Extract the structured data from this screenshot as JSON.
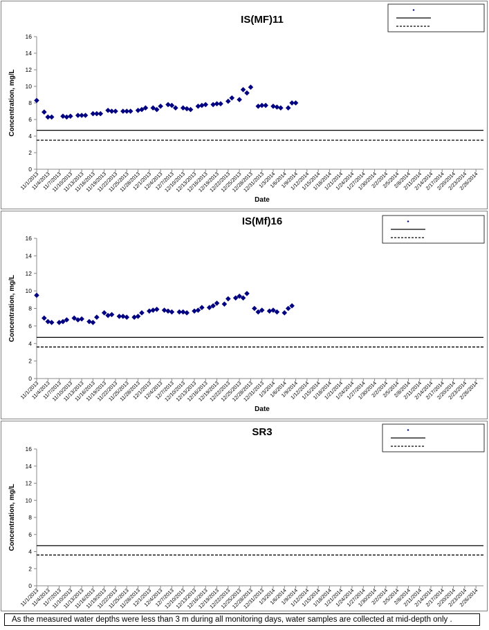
{
  "x_dates": [
    "11/1/2013",
    "11/4/2013",
    "11/7/2013",
    "11/10/2013",
    "11/13/2013",
    "11/16/2013",
    "11/19/2013",
    "11/22/2013",
    "11/25/2013",
    "11/28/2013",
    "12/1/2013",
    "12/4/2013",
    "12/7/2013",
    "12/10/2013",
    "12/13/2013",
    "12/16/2013",
    "12/19/2013",
    "12/22/2013",
    "12/25/2013",
    "12/28/2013",
    "12/31/2013",
    "1/3/2014",
    "1/6/2014",
    "1/9/2014",
    "1/12/2014",
    "1/15/2014",
    "1/18/2014",
    "1/21/2014",
    "1/24/2014",
    "1/27/2014",
    "1/30/2014",
    "2/2/2014",
    "2/5/2014",
    "2/8/2014",
    "2/11/2014",
    "2/14/2014",
    "2/17/2014",
    "2/20/2014",
    "2/23/2014",
    "2/26/2014"
  ],
  "footnote": "As the measured water depths were less than 3 m during all monitoring days, water samples are collected  at mid-depth only .",
  "chart_data": [
    {
      "type": "scatter",
      "title": "IS(MF)11",
      "xlabel": "Date",
      "ylabel": "Concentration, mg/L",
      "ylim": [
        0,
        16
      ],
      "y_ticks": [
        0,
        2,
        4,
        6,
        8,
        10,
        12,
        14,
        16
      ],
      "x_range": [
        "11/1/2013",
        "2/28/2014"
      ],
      "grid": false,
      "legend_position": "top-right",
      "marker_color": "#000080",
      "points": [
        [
          "11/1/2013",
          8.3
        ],
        [
          "11/3/2013",
          6.9
        ],
        [
          "11/4/2013",
          6.3
        ],
        [
          "11/5/2013",
          6.3
        ],
        [
          "11/8/2013",
          6.4
        ],
        [
          "11/9/2013",
          6.3
        ],
        [
          "11/10/2013",
          6.4
        ],
        [
          "11/12/2013",
          6.5
        ],
        [
          "11/13/2013",
          6.5
        ],
        [
          "11/14/2013",
          6.5
        ],
        [
          "11/16/2013",
          6.7
        ],
        [
          "11/17/2013",
          6.7
        ],
        [
          "11/18/2013",
          6.7
        ],
        [
          "11/20/2013",
          7.1
        ],
        [
          "11/21/2013",
          7.0
        ],
        [
          "11/22/2013",
          7.0
        ],
        [
          "11/24/2013",
          7.0
        ],
        [
          "11/25/2013",
          7.0
        ],
        [
          "11/26/2013",
          7.0
        ],
        [
          "11/28/2013",
          7.1
        ],
        [
          "11/29/2013",
          7.2
        ],
        [
          "11/30/2013",
          7.4
        ],
        [
          "12/2/2013",
          7.4
        ],
        [
          "12/3/2013",
          7.2
        ],
        [
          "12/4/2013",
          7.6
        ],
        [
          "12/6/2013",
          7.8
        ],
        [
          "12/7/2013",
          7.7
        ],
        [
          "12/8/2013",
          7.4
        ],
        [
          "12/10/2013",
          7.4
        ],
        [
          "12/11/2013",
          7.3
        ],
        [
          "12/12/2013",
          7.2
        ],
        [
          "12/14/2013",
          7.6
        ],
        [
          "12/15/2013",
          7.7
        ],
        [
          "12/16/2013",
          7.8
        ],
        [
          "12/18/2013",
          7.8
        ],
        [
          "12/19/2013",
          7.9
        ],
        [
          "12/20/2013",
          7.9
        ],
        [
          "12/22/2013",
          8.2
        ],
        [
          "12/23/2013",
          8.6
        ],
        [
          "12/25/2013",
          8.4
        ],
        [
          "12/26/2013",
          9.6
        ],
        [
          "12/27/2013",
          9.2
        ],
        [
          "12/28/2013",
          9.9
        ],
        [
          "12/30/2013",
          7.6
        ],
        [
          "12/31/2013",
          7.7
        ],
        [
          "1/1/2014",
          7.7
        ],
        [
          "1/3/2014",
          7.6
        ],
        [
          "1/4/2014",
          7.5
        ],
        [
          "1/5/2014",
          7.4
        ],
        [
          "1/7/2014",
          7.4
        ],
        [
          "1/8/2014",
          8.0
        ],
        [
          "1/9/2014",
          8.0
        ]
      ],
      "reference_lines": [
        {
          "name": "",
          "value": 4.7,
          "style": "solid"
        },
        {
          "name": "",
          "value": 3.5,
          "style": "dashed"
        }
      ]
    },
    {
      "type": "scatter",
      "title": "IS(Mf)16",
      "xlabel": "Date",
      "ylabel": "Concentration, mg/L",
      "ylim": [
        0,
        16
      ],
      "y_ticks": [
        0,
        2,
        4,
        6,
        8,
        10,
        12,
        14,
        16
      ],
      "x_range": [
        "11/1/2013",
        "2/28/2014"
      ],
      "grid": false,
      "legend_position": "top-right",
      "marker_color": "#000080",
      "points": [
        [
          "11/1/2013",
          9.5
        ],
        [
          "11/3/2013",
          6.9
        ],
        [
          "11/4/2013",
          6.5
        ],
        [
          "11/5/2013",
          6.4
        ],
        [
          "11/7/2013",
          6.4
        ],
        [
          "11/8/2013",
          6.5
        ],
        [
          "11/9/2013",
          6.7
        ],
        [
          "11/11/2013",
          6.9
        ],
        [
          "11/12/2013",
          6.7
        ],
        [
          "11/13/2013",
          6.8
        ],
        [
          "11/15/2013",
          6.5
        ],
        [
          "11/16/2013",
          6.4
        ],
        [
          "11/17/2013",
          7.0
        ],
        [
          "11/19/2013",
          7.5
        ],
        [
          "11/20/2013",
          7.2
        ],
        [
          "11/21/2013",
          7.3
        ],
        [
          "11/23/2013",
          7.1
        ],
        [
          "11/24/2013",
          7.1
        ],
        [
          "11/25/2013",
          7.0
        ],
        [
          "11/27/2013",
          7.0
        ],
        [
          "11/28/2013",
          7.1
        ],
        [
          "11/29/2013",
          7.5
        ],
        [
          "12/1/2013",
          7.7
        ],
        [
          "12/2/2013",
          7.8
        ],
        [
          "12/3/2013",
          7.9
        ],
        [
          "12/5/2013",
          7.8
        ],
        [
          "12/6/2013",
          7.7
        ],
        [
          "12/7/2013",
          7.6
        ],
        [
          "12/9/2013",
          7.6
        ],
        [
          "12/10/2013",
          7.6
        ],
        [
          "12/11/2013",
          7.5
        ],
        [
          "12/13/2013",
          7.7
        ],
        [
          "12/14/2013",
          7.8
        ],
        [
          "12/15/2013",
          8.1
        ],
        [
          "12/17/2013",
          8.1
        ],
        [
          "12/18/2013",
          8.3
        ],
        [
          "12/19/2013",
          8.6
        ],
        [
          "12/21/2013",
          8.5
        ],
        [
          "12/22/2013",
          9.1
        ],
        [
          "12/24/2013",
          9.2
        ],
        [
          "12/25/2013",
          9.4
        ],
        [
          "12/26/2013",
          9.2
        ],
        [
          "12/27/2013",
          9.7
        ],
        [
          "12/29/2013",
          8.0
        ],
        [
          "12/30/2013",
          7.6
        ],
        [
          "12/31/2013",
          7.8
        ],
        [
          "1/2/2014",
          7.7
        ],
        [
          "1/3/2014",
          7.8
        ],
        [
          "1/4/2014",
          7.6
        ],
        [
          "1/6/2014",
          7.5
        ],
        [
          "1/7/2014",
          8.0
        ],
        [
          "1/8/2014",
          8.3
        ]
      ],
      "reference_lines": [
        {
          "name": "",
          "value": 4.7,
          "style": "solid"
        },
        {
          "name": "",
          "value": 3.6,
          "style": "dashed"
        }
      ]
    },
    {
      "type": "scatter",
      "title": "SR3",
      "xlabel": "Date",
      "ylabel": "Concentration, mg/L",
      "ylim": [
        0,
        16
      ],
      "y_ticks": [
        0,
        2,
        4,
        6,
        8,
        10,
        12,
        14,
        16
      ],
      "x_range": [
        "11/1/2013",
        "2/28/2014"
      ],
      "grid": false,
      "legend_position": "top-right",
      "marker_color": "#000080",
      "points": [],
      "reference_lines": [
        {
          "name": "",
          "value": 4.7,
          "style": "solid"
        },
        {
          "name": "",
          "value": 3.6,
          "style": "dashed"
        }
      ]
    }
  ]
}
